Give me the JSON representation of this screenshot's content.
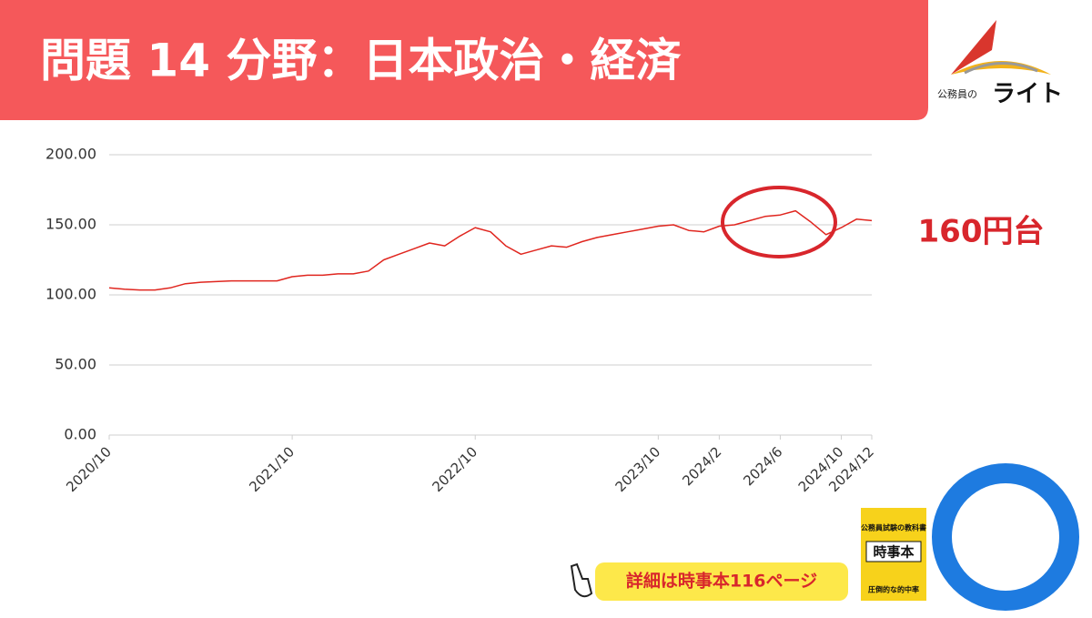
{
  "header": {
    "title": "問題 14  分野：日本政治・経済",
    "logo_small": "公務員の",
    "logo_brand": "ライト"
  },
  "chart_data": {
    "type": "line",
    "color": "#e0261f",
    "x": [
      "2020/10",
      "2020/11",
      "2020/12",
      "2021/1",
      "2021/2",
      "2021/3",
      "2021/4",
      "2021/5",
      "2021/6",
      "2021/7",
      "2021/8",
      "2021/9",
      "2021/10",
      "2021/11",
      "2021/12",
      "2022/1",
      "2022/2",
      "2022/3",
      "2022/4",
      "2022/5",
      "2022/6",
      "2022/7",
      "2022/8",
      "2022/9",
      "2022/10",
      "2022/11",
      "2022/12",
      "2023/1",
      "2023/2",
      "2023/3",
      "2023/4",
      "2023/5",
      "2023/6",
      "2023/7",
      "2023/8",
      "2023/9",
      "2023/10",
      "2023/11",
      "2023/12",
      "2024/1",
      "2024/2",
      "2024/3",
      "2024/4",
      "2024/5",
      "2024/6",
      "2024/7",
      "2024/8",
      "2024/9",
      "2024/10",
      "2024/11",
      "2024/12"
    ],
    "values": [
      105,
      104,
      103.5,
      103.5,
      105,
      108,
      109,
      109.5,
      110,
      110,
      110,
      110,
      113,
      114,
      114,
      115,
      115,
      117,
      125,
      129,
      133,
      137,
      135,
      142,
      148,
      145,
      135,
      129,
      132,
      135,
      134,
      138,
      141,
      143,
      145,
      147,
      149,
      150,
      146,
      145,
      149,
      150,
      153,
      156,
      157,
      160,
      152,
      143,
      148,
      154,
      153
    ],
    "xlim": [
      "2020/10",
      "2024/12"
    ],
    "xticks": [
      "2020/10",
      "2021/10",
      "2022/10",
      "2023/10",
      "2024/2",
      "2024/6",
      "2024/10",
      "2024/12"
    ],
    "ylim": [
      0,
      200
    ],
    "yticks": [
      {
        "value": 0,
        "label": "0.00"
      },
      {
        "value": 50,
        "label": "50.00"
      },
      {
        "value": 100,
        "label": "100.00"
      },
      {
        "value": 150,
        "label": "150.00"
      },
      {
        "value": 200,
        "label": "200.00"
      }
    ],
    "grid": true
  },
  "annotations": {
    "highlight": "160円台",
    "callout": "詳細は時事本116ページ"
  },
  "book": {
    "subtitle": "公務員試験の教科書",
    "title": "時事本",
    "footer": "圧倒的な的中率"
  }
}
